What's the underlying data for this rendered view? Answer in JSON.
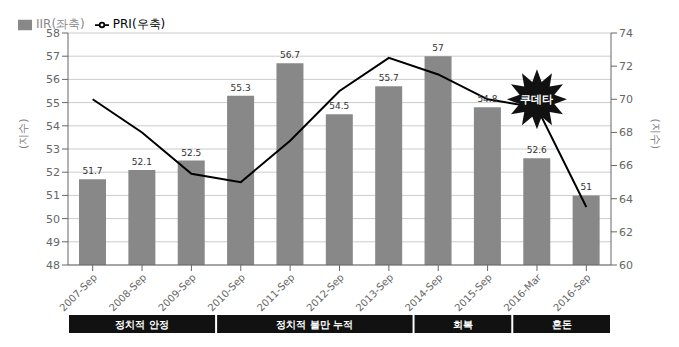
{
  "chart_data": {
    "type": "bar",
    "categories": [
      "2007-Sep",
      "2008-Sep",
      "2009-Sep",
      "2010-Sep",
      "2011-Sep",
      "2012-Sep",
      "2013-Sep",
      "2014-Sep",
      "2015-Sep",
      "2016-Mar",
      "2016-Sep"
    ],
    "series": [
      {
        "name": "IIR(좌축)",
        "type": "bar",
        "color": "#888888",
        "values": [
          51.7,
          52.1,
          52.5,
          55.3,
          56.7,
          54.5,
          55.7,
          57.0,
          54.8,
          52.6,
          51.0
        ],
        "value_labels": [
          "51.7",
          "52.1",
          "52.5",
          "55.3",
          "56.7",
          "54.5",
          "55.7",
          "57",
          "54.8",
          "52.6",
          "51"
        ],
        "data_labels": true
      },
      {
        "name": "PRI(우축)",
        "type": "line",
        "axis": "y2",
        "color": "#000000",
        "values": [
          70.0,
          68.0,
          65.5,
          65.0,
          67.5,
          70.5,
          72.5,
          71.5,
          70.0,
          69.5,
          63.5
        ]
      }
    ],
    "ylabel": "(지수)",
    "y2label": "(지수)",
    "ylim": [
      48,
      58
    ],
    "yticks": [
      48,
      49,
      50,
      51,
      52,
      53,
      54,
      55,
      56,
      57,
      58
    ],
    "y2lim": [
      60,
      74
    ],
    "y2ticks": [
      60,
      62,
      64,
      66,
      68,
      70,
      72,
      74
    ],
    "grid": true,
    "legend": "upper left",
    "shaded": {
      "from": "2016-Mar",
      "to": "2016-Sep",
      "color": "#d8d8d8"
    },
    "annotations": [
      {
        "text": "정치적 안정",
        "from": "2007-Sep",
        "to": "2009-Sep"
      },
      {
        "text": "정치적 불만 누적",
        "from": "2010-Sep",
        "to": "2013-Sep"
      },
      {
        "text": "회복",
        "from": "2014-Sep",
        "to": "2015-Sep"
      },
      {
        "text": "혼돈",
        "from": "2016-Mar",
        "to": "2016-Sep"
      },
      {
        "text": "쿠데타",
        "x": "2016-Mar",
        "y": 70,
        "axis": "y2"
      }
    ]
  }
}
